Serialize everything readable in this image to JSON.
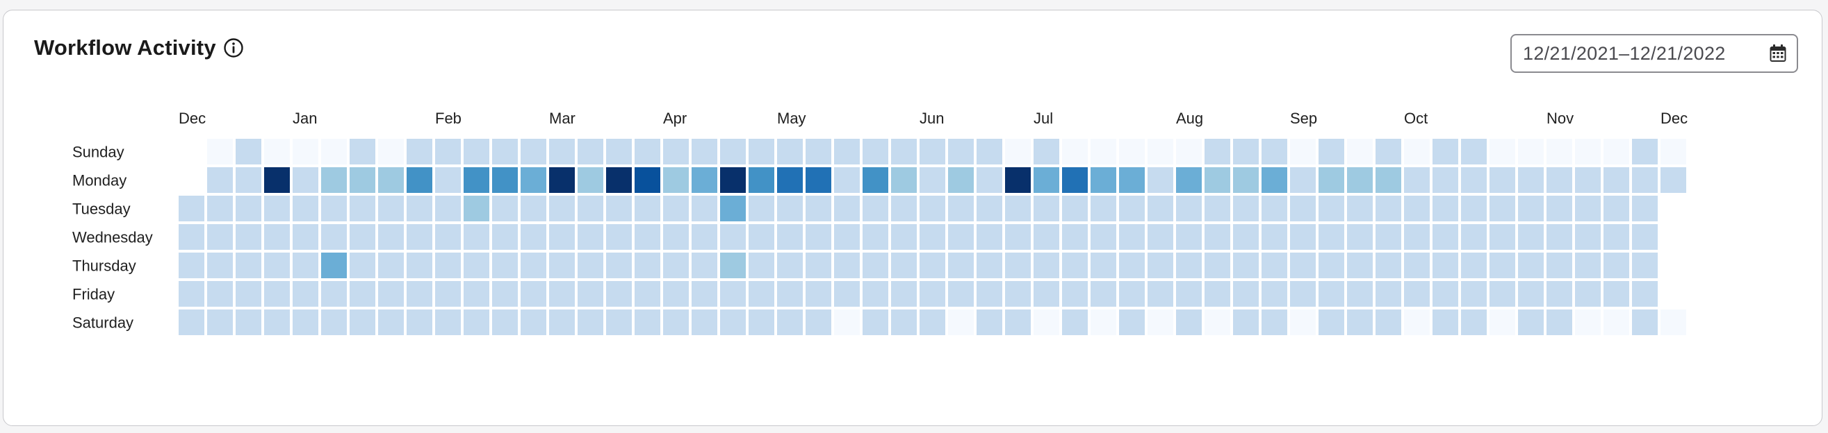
{
  "widget": {
    "title": "Workflow Activity",
    "info_icon": "info-circle-icon",
    "date_range": {
      "start": "12/21/2021",
      "separator": "–",
      "end": "12/21/2022",
      "icon": "calendar-icon"
    }
  },
  "chart_data": {
    "type": "heatmap",
    "title": "",
    "days": [
      "Sunday",
      "Monday",
      "Tuesday",
      "Wednesday",
      "Thursday",
      "Friday",
      "Saturday"
    ],
    "month_labels": [
      {
        "label": "Dec",
        "week": 0
      },
      {
        "label": "Jan",
        "week": 4
      },
      {
        "label": "Feb",
        "week": 9
      },
      {
        "label": "Mar",
        "week": 13
      },
      {
        "label": "Apr",
        "week": 17
      },
      {
        "label": "May",
        "week": 21
      },
      {
        "label": "Jun",
        "week": 26
      },
      {
        "label": "Jul",
        "week": 30
      },
      {
        "label": "Aug",
        "week": 35
      },
      {
        "label": "Sep",
        "week": 39
      },
      {
        "label": "Oct",
        "week": 43
      },
      {
        "label": "Nov",
        "week": 48
      },
      {
        "label": "Dec",
        "week": 52
      }
    ],
    "scale_colors": [
      "#f5f9fe",
      "#c6dbef",
      "#9ecae1",
      "#6baed6",
      "#4292c6",
      "#2171b5",
      "#08519c",
      "#08306b"
    ],
    "levels": [
      [
        null,
        0,
        1,
        0,
        0,
        0,
        1,
        0,
        1,
        1,
        1,
        1,
        1,
        1,
        1,
        1,
        1,
        1,
        1,
        1,
        1,
        1,
        1,
        1,
        1,
        1,
        1,
        1,
        1,
        0,
        1,
        0,
        0,
        0,
        0,
        0,
        1,
        1,
        1,
        0,
        1,
        0,
        1,
        0,
        1,
        1,
        0,
        0,
        0,
        0,
        0,
        1,
        0
      ],
      [
        null,
        1,
        1,
        7,
        1,
        2,
        2,
        2,
        4,
        1,
        4,
        4,
        3,
        7,
        2,
        7,
        6,
        2,
        3,
        7,
        4,
        5,
        5,
        1,
        4,
        2,
        1,
        2,
        1,
        7,
        3,
        5,
        3,
        3,
        1,
        3,
        2,
        2,
        3,
        1,
        2,
        2,
        2,
        1,
        1,
        1,
        1,
        1,
        1,
        1,
        1,
        1,
        1
      ],
      [
        1,
        1,
        1,
        1,
        1,
        1,
        1,
        1,
        1,
        1,
        2,
        1,
        1,
        1,
        1,
        1,
        1,
        1,
        1,
        3,
        1,
        1,
        1,
        1,
        1,
        1,
        1,
        1,
        1,
        1,
        1,
        1,
        1,
        1,
        1,
        1,
        1,
        1,
        1,
        1,
        1,
        1,
        1,
        1,
        1,
        1,
        1,
        1,
        1,
        1,
        1,
        1,
        null
      ],
      [
        1,
        1,
        1,
        1,
        1,
        1,
        1,
        1,
        1,
        1,
        1,
        1,
        1,
        1,
        1,
        1,
        1,
        1,
        1,
        1,
        1,
        1,
        1,
        1,
        1,
        1,
        1,
        1,
        1,
        1,
        1,
        1,
        1,
        1,
        1,
        1,
        1,
        1,
        1,
        1,
        1,
        1,
        1,
        1,
        1,
        1,
        1,
        1,
        1,
        1,
        1,
        1,
        null
      ],
      [
        1,
        1,
        1,
        1,
        1,
        3,
        1,
        1,
        1,
        1,
        1,
        1,
        1,
        1,
        1,
        1,
        1,
        1,
        1,
        2,
        1,
        1,
        1,
        1,
        1,
        1,
        1,
        1,
        1,
        1,
        1,
        1,
        1,
        1,
        1,
        1,
        1,
        1,
        1,
        1,
        1,
        1,
        1,
        1,
        1,
        1,
        1,
        1,
        1,
        1,
        1,
        1,
        null
      ],
      [
        1,
        1,
        1,
        1,
        1,
        1,
        1,
        1,
        1,
        1,
        1,
        1,
        1,
        1,
        1,
        1,
        1,
        1,
        1,
        1,
        1,
        1,
        1,
        1,
        1,
        1,
        1,
        1,
        1,
        1,
        1,
        1,
        1,
        1,
        1,
        1,
        1,
        1,
        1,
        1,
        1,
        1,
        1,
        1,
        1,
        1,
        1,
        1,
        1,
        1,
        1,
        1,
        null
      ],
      [
        1,
        1,
        1,
        1,
        1,
        1,
        1,
        1,
        1,
        1,
        1,
        1,
        1,
        1,
        1,
        1,
        1,
        1,
        1,
        1,
        1,
        1,
        1,
        0,
        1,
        1,
        1,
        0,
        1,
        1,
        0,
        1,
        0,
        1,
        0,
        1,
        0,
        1,
        1,
        0,
        1,
        1,
        1,
        0,
        1,
        1,
        0,
        1,
        1,
        0,
        0,
        1,
        0
      ]
    ]
  }
}
